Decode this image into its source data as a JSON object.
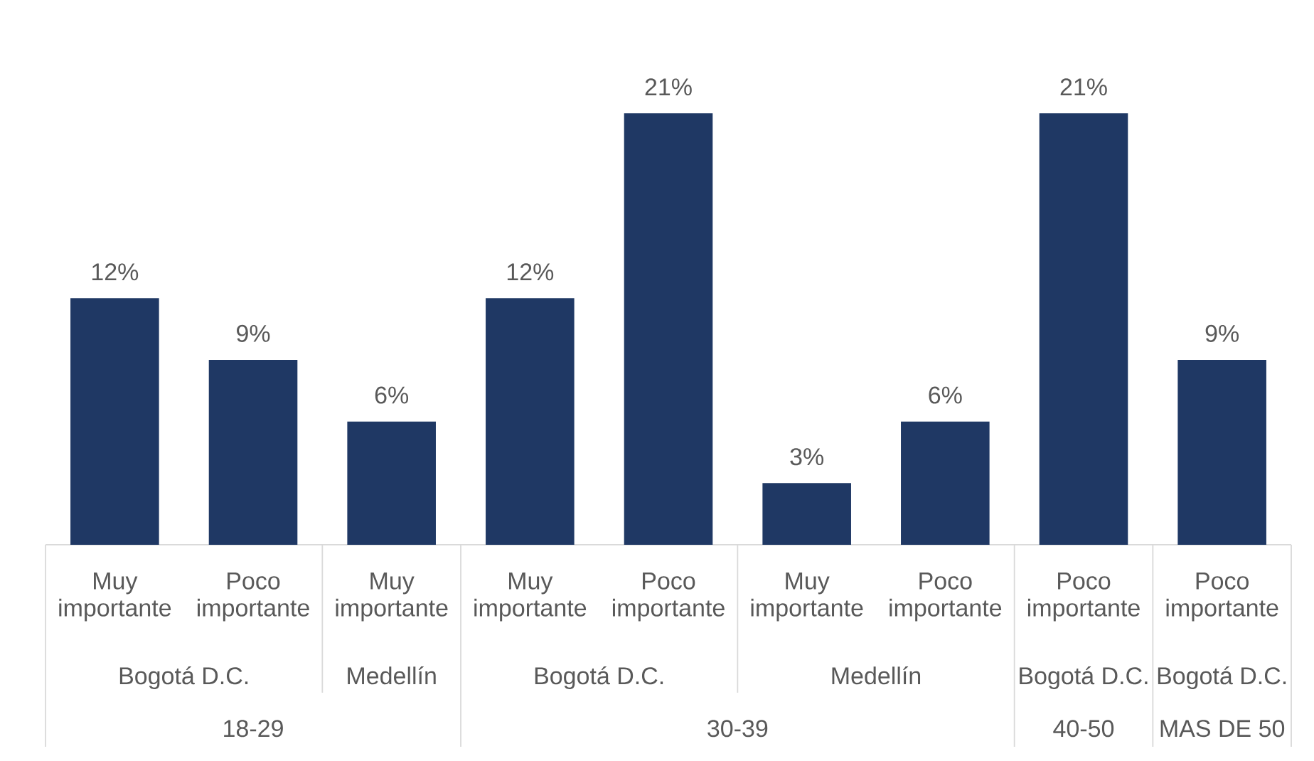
{
  "chart_data": {
    "type": "bar",
    "categories": [
      "Muy importante",
      "Poco importante",
      "Muy importante",
      "Muy importante",
      "Poco importante",
      "Muy importante",
      "Poco importante",
      "Poco importante",
      "Poco importante"
    ],
    "values": [
      12,
      9,
      6,
      12,
      21,
      3,
      6,
      21,
      9
    ],
    "value_labels": [
      "12%",
      "9%",
      "6%",
      "12%",
      "21%",
      "3%",
      "6%",
      "21%",
      "9%"
    ],
    "color": "#1f3864",
    "tick_labels": "x",
    "annotations": [
      "Bogotá D.C.",
      "Medellín",
      "Bogotá D.C.",
      "Medellín",
      "Bogotá D.C.",
      "Bogotá D.C.",
      "18-29",
      "30-39",
      "40-50",
      "MAS DE 50"
    ]
  }
}
